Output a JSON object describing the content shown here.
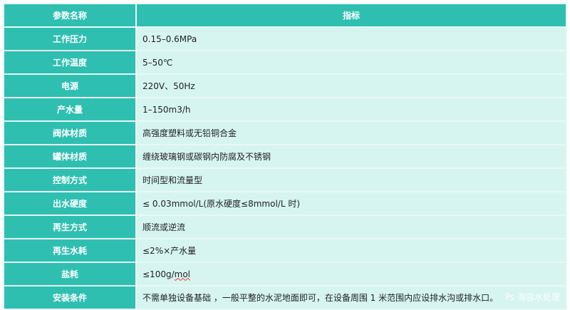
{
  "header": {
    "name": "参数名称",
    "value": "指标"
  },
  "rows": [
    {
      "name": "工作压力",
      "value": "0.15–0.6MPa"
    },
    {
      "name": "工作温度",
      "value": "5–50℃"
    },
    {
      "name": "电源",
      "value": "220V、50Hz"
    },
    {
      "name": "产水量",
      "value": "1–150m3/h"
    },
    {
      "name": "阀体材质",
      "value": "高强度塑料或无铅铜合金"
    },
    {
      "name": "罐体材质",
      "value": "缠绕玻璃钢或碳钢内防腐及不锈钢"
    },
    {
      "name": "控制方式",
      "value": "时间型和流量型"
    },
    {
      "name": "出水硬度",
      "value": "≤  0.03mmol/L(原水硬度≤8mmol/L 时)"
    },
    {
      "name": "再生方式",
      "value": "顺流或逆流"
    },
    {
      "name": "再生水耗",
      "value": "≤2%×产水量"
    },
    {
      "name": "盐耗",
      "value": "≤100g/",
      "value_underlined": "mol"
    },
    {
      "name": "安装条件",
      "value": "不需单独设备基础 ，一般平整的水泥地面即可，在设备周围 1 米范围内应设排水沟或排水口。"
    }
  ],
  "watermark": "Ps 海容水处理"
}
